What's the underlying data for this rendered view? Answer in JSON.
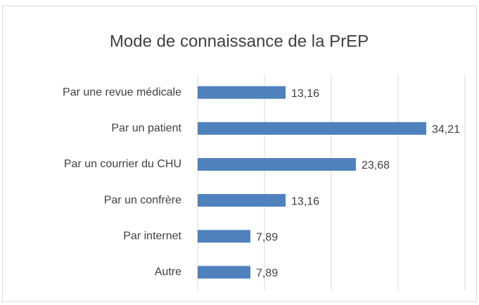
{
  "chart_data": {
    "type": "bar",
    "orientation": "horizontal",
    "title": "Mode de connaissance de la PrEP",
    "categories": [
      "Par une revue médicale",
      "Par un patient",
      "Par un courrier du CHU",
      "Par un confrère",
      "Par internet",
      "Autre"
    ],
    "values": [
      13.16,
      34.21,
      23.68,
      13.16,
      7.89,
      7.89
    ],
    "value_labels": [
      "13,16",
      "34,21",
      "23,68",
      "13,16",
      "7,89",
      "7,89"
    ],
    "color": "#4f81bd",
    "xlim": [
      0,
      40
    ],
    "xticks": [
      0,
      10,
      20,
      30,
      40
    ],
    "grid": true
  }
}
